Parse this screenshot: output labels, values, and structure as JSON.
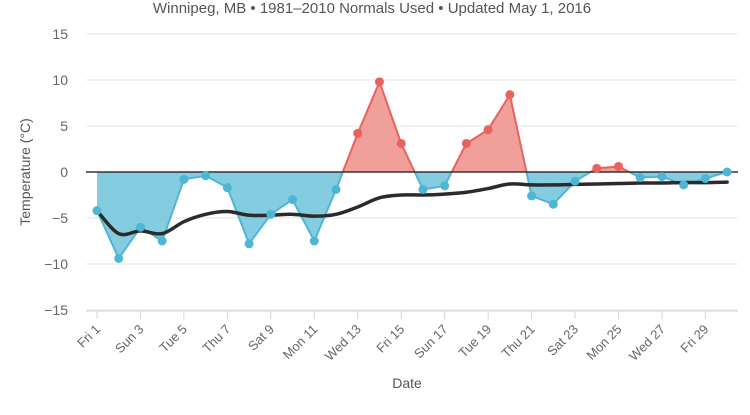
{
  "chart_data": {
    "type": "area",
    "subtitle": "Winnipeg, MB • 1981–2010 Normals Used • Updated May 1, 2016",
    "xlabel": "Date",
    "ylabel": "Temperature (°C)",
    "ylim": [
      -15,
      15
    ],
    "yticks": [
      15,
      10,
      5,
      0,
      -5,
      -10,
      -15
    ],
    "x": [
      1,
      2,
      3,
      4,
      5,
      6,
      7,
      8,
      9,
      10,
      11,
      12,
      13,
      14,
      15,
      16,
      17,
      18,
      19,
      20,
      21,
      22,
      23,
      24,
      25,
      26,
      27,
      28,
      29,
      30
    ],
    "xticks": [
      {
        "day": 1,
        "label": "Fri 1"
      },
      {
        "day": 3,
        "label": "Sun 3"
      },
      {
        "day": 5,
        "label": "Tue 5"
      },
      {
        "day": 7,
        "label": "Thu 7"
      },
      {
        "day": 9,
        "label": "Sat 9"
      },
      {
        "day": 11,
        "label": "Mon 11"
      },
      {
        "day": 13,
        "label": "Wed 13"
      },
      {
        "day": 15,
        "label": "Fri 15"
      },
      {
        "day": 17,
        "label": "Sun 17"
      },
      {
        "day": 19,
        "label": "Tue 19"
      },
      {
        "day": 21,
        "label": "Thu 21"
      },
      {
        "day": 23,
        "label": "Sat 23"
      },
      {
        "day": 25,
        "label": "Mon 25"
      },
      {
        "day": 27,
        "label": "Wed 27"
      },
      {
        "day": 29,
        "label": "Fri 29"
      }
    ],
    "series": [
      {
        "key": "anomaly",
        "values": [
          -4.2,
          -9.4,
          -6.0,
          -7.5,
          -0.8,
          -0.4,
          -1.7,
          -7.8,
          -4.6,
          -3.0,
          -7.5,
          -1.9,
          4.2,
          9.8,
          3.1,
          -1.9,
          -1.5,
          3.1,
          4.6,
          8.4,
          -2.6,
          -3.5,
          -1.0,
          0.4,
          0.6,
          -0.6,
          -0.5,
          -1.4,
          -0.7,
          0.0
        ]
      },
      {
        "key": "normal",
        "values": [
          -4.2,
          -6.7,
          -6.4,
          -6.7,
          -5.4,
          -4.6,
          -4.3,
          -4.7,
          -4.7,
          -4.6,
          -4.8,
          -4.6,
          -3.8,
          -2.8,
          -2.5,
          -2.5,
          -2.4,
          -2.2,
          -1.8,
          -1.3,
          -1.4,
          -1.4,
          -1.35,
          -1.3,
          -1.25,
          -1.2,
          -1.2,
          -1.15,
          -1.15,
          -1.1
        ]
      }
    ],
    "colors": {
      "below": "#4fb5d4",
      "below_fill": "#6ec3db",
      "above": "#e8625e",
      "above_fill": "#ee8e8a",
      "normal_line": "#2b2b2b",
      "grid": "#e6e6e6",
      "zero_line": "#333333",
      "axis_text": "#666666",
      "title_text": "#555555"
    },
    "grid": true,
    "legend": "none"
  }
}
